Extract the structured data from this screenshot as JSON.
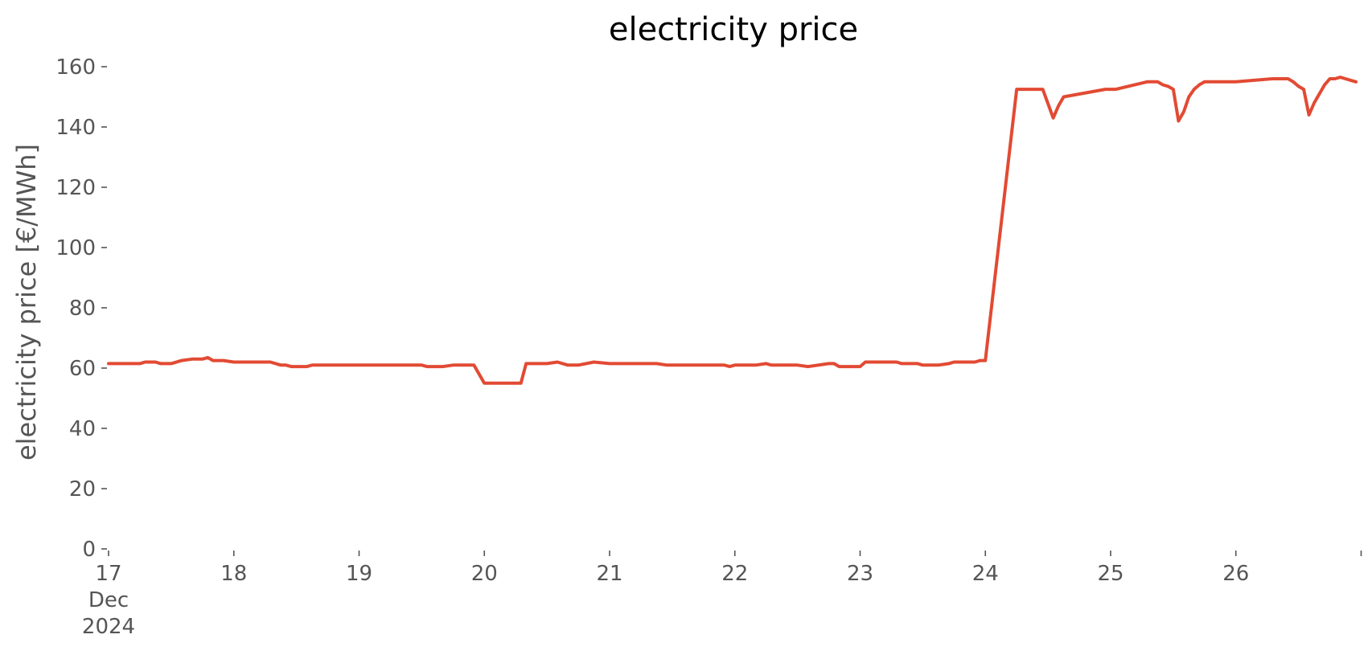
{
  "chart_data": {
    "type": "line",
    "title": "electricity price",
    "xlabel": "",
    "ylabel": "electricity price [€/MWh]",
    "ylim": [
      0,
      160
    ],
    "xlim": [
      "2024-12-17T00:00",
      "2024-12-26T23:00"
    ],
    "grid": false,
    "legend": "none",
    "line_color": "#E24A33",
    "yticks": [
      0,
      20,
      40,
      60,
      80,
      100,
      120,
      140,
      160
    ],
    "xticks": [
      {
        "date": "2024-12-17",
        "label": "17",
        "sublabel1": "Dec",
        "sublabel2": "2024"
      },
      {
        "date": "2024-12-18",
        "label": "18"
      },
      {
        "date": "2024-12-19",
        "label": "19"
      },
      {
        "date": "2024-12-20",
        "label": "20"
      },
      {
        "date": "2024-12-21",
        "label": "21"
      },
      {
        "date": "2024-12-22",
        "label": "22"
      },
      {
        "date": "2024-12-23",
        "label": "23"
      },
      {
        "date": "2024-12-24",
        "label": "24"
      },
      {
        "date": "2024-12-25",
        "label": "25"
      },
      {
        "date": "2024-12-26",
        "label": "26"
      },
      {
        "date": "2024-12-27",
        "label": ""
      }
    ],
    "x": [
      "2024-12-17T00:00",
      "2024-12-17T06:00",
      "2024-12-17T07:00",
      "2024-12-17T09:00",
      "2024-12-17T10:00",
      "2024-12-17T12:00",
      "2024-12-17T14:00",
      "2024-12-17T16:00",
      "2024-12-17T18:00",
      "2024-12-17T19:00",
      "2024-12-17T20:00",
      "2024-12-17T22:00",
      "2024-12-18T00:00",
      "2024-12-18T07:00",
      "2024-12-18T09:00",
      "2024-12-18T10:00",
      "2024-12-18T11:00",
      "2024-12-18T14:00",
      "2024-12-18T15:00",
      "2024-12-18T18:00",
      "2024-12-19T00:00",
      "2024-12-19T12:00",
      "2024-12-19T13:00",
      "2024-12-19T16:00",
      "2024-12-19T18:00",
      "2024-12-19T21:00",
      "2024-12-19T22:00",
      "2024-12-20T00:00",
      "2024-12-20T07:00",
      "2024-12-20T08:00",
      "2024-12-20T12:00",
      "2024-12-20T14:00",
      "2024-12-20T16:00",
      "2024-12-20T18:00",
      "2024-12-20T21:00",
      "2024-12-21T00:00",
      "2024-12-21T09:00",
      "2024-12-21T11:00",
      "2024-12-21T16:00",
      "2024-12-21T22:00",
      "2024-12-21T23:00",
      "2024-12-22T00:00",
      "2024-12-22T04:00",
      "2024-12-22T06:00",
      "2024-12-22T07:00",
      "2024-12-22T12:00",
      "2024-12-22T14:00",
      "2024-12-22T18:00",
      "2024-12-22T19:00",
      "2024-12-22T20:00",
      "2024-12-23T00:00",
      "2024-12-23T01:00",
      "2024-12-23T07:00",
      "2024-12-23T08:00",
      "2024-12-23T11:00",
      "2024-12-23T12:00",
      "2024-12-23T15:00",
      "2024-12-23T17:00",
      "2024-12-23T18:00",
      "2024-12-23T22:00",
      "2024-12-23T23:00",
      "2024-12-24T00:00",
      "2024-12-24T06:00",
      "2024-12-24T10:00",
      "2024-12-24T11:00",
      "2024-12-24T13:00",
      "2024-12-24T14:00",
      "2024-12-24T15:00",
      "2024-12-24T23:00",
      "2024-12-25T00:00",
      "2024-12-25T01:00",
      "2024-12-25T07:00",
      "2024-12-25T08:00",
      "2024-12-25T09:00",
      "2024-12-25T10:00",
      "2024-12-25T11:00",
      "2024-12-25T12:00",
      "2024-12-25T13:00",
      "2024-12-25T14:00",
      "2024-12-25T15:00",
      "2024-12-25T16:00",
      "2024-12-25T17:00",
      "2024-12-25T18:00",
      "2024-12-25T23:00",
      "2024-12-26T00:00",
      "2024-12-26T07:00",
      "2024-12-26T09:00",
      "2024-12-26T10:00",
      "2024-12-26T11:00",
      "2024-12-26T12:00",
      "2024-12-26T13:00",
      "2024-12-26T14:00",
      "2024-12-26T15:00",
      "2024-12-26T16:00",
      "2024-12-26T17:00",
      "2024-12-26T18:00",
      "2024-12-26T19:00",
      "2024-12-26T20:00",
      "2024-12-26T21:00",
      "2024-12-26T22:00",
      "2024-12-26T23:00"
    ],
    "series": [
      {
        "values": [
          61.5,
          61.5,
          62,
          62,
          61.5,
          61.5,
          62.5,
          63,
          63,
          63.5,
          62.5,
          62.5,
          62,
          62,
          61,
          61,
          60.5,
          60.5,
          61,
          61,
          61,
          61,
          60.5,
          60.5,
          61,
          61,
          61,
          55,
          55,
          61.5,
          61.5,
          62,
          61,
          61,
          62,
          61.5,
          61.5,
          61,
          61,
          61,
          60.5,
          61,
          61,
          61.5,
          61,
          61,
          60.5,
          61.5,
          61.5,
          60.5,
          60.5,
          62,
          62,
          61.5,
          61.5,
          61,
          61,
          61.5,
          62,
          62,
          62.5,
          62.5,
          152.5,
          152.5,
          152.5,
          143,
          147,
          150,
          152.5,
          152.5,
          152.5,
          155,
          155,
          155,
          154,
          153.5,
          152.5,
          142,
          145,
          150,
          152.5,
          154,
          155,
          155,
          155,
          156,
          156,
          156,
          155,
          153.5,
          152.5,
          144,
          148,
          151,
          154,
          156,
          156,
          156.5,
          156,
          155.5,
          155
        ]
      }
    ]
  }
}
